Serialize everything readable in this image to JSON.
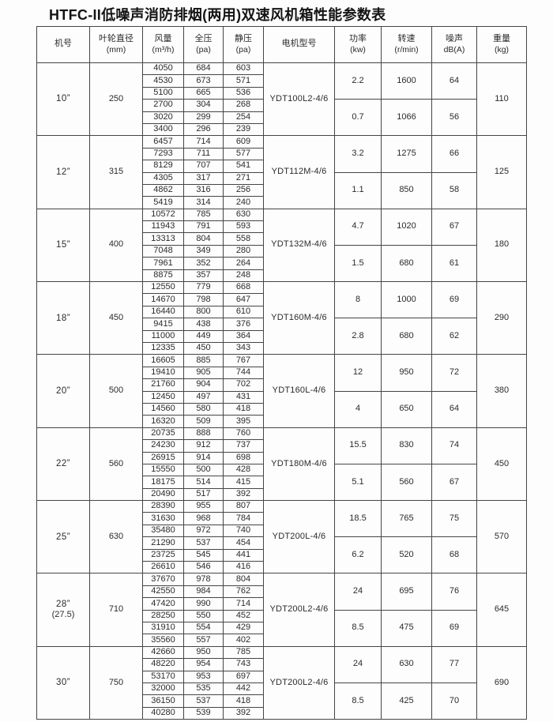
{
  "title": "HTFC-II低噪声消防排烟(两用)双速风机箱性能参数表",
  "table": {
    "headers": [
      {
        "label": "机号",
        "unit": ""
      },
      {
        "label": "叶轮直径",
        "unit": "(mm)"
      },
      {
        "label": "风量",
        "unit": "(m³/h)"
      },
      {
        "label": "全压",
        "unit": "(pa)"
      },
      {
        "label": "静压",
        "unit": "(pa)"
      },
      {
        "label": "电机型号",
        "unit": ""
      },
      {
        "label": "功率",
        "unit": "(kw)"
      },
      {
        "label": "转速",
        "unit": "(r/min)"
      },
      {
        "label": "噪声",
        "unit": "dB(A)"
      },
      {
        "label": "重量",
        "unit": "(kg)"
      }
    ],
    "groups": [
      {
        "size": "10”",
        "size_note": "",
        "diameter": "250",
        "motor": "YDT100L2-4/6",
        "weight": "110",
        "rows": [
          [
            4050,
            684,
            603
          ],
          [
            4530,
            673,
            571
          ],
          [
            5100,
            665,
            536
          ],
          [
            2700,
            304,
            268
          ],
          [
            3020,
            299,
            254
          ],
          [
            3400,
            296,
            239
          ]
        ],
        "speeds": [
          {
            "power": "2.2",
            "rpm": "1600",
            "noise": "64"
          },
          {
            "power": "0.7",
            "rpm": "1066",
            "noise": "56"
          }
        ]
      },
      {
        "size": "12”",
        "size_note": "",
        "diameter": "315",
        "motor": "YDT112M-4/6",
        "weight": "125",
        "rows": [
          [
            6457,
            714,
            609
          ],
          [
            7293,
            711,
            577
          ],
          [
            8129,
            707,
            541
          ],
          [
            4305,
            317,
            271
          ],
          [
            4862,
            316,
            256
          ],
          [
            5419,
            314,
            240
          ]
        ],
        "speeds": [
          {
            "power": "3.2",
            "rpm": "1275",
            "noise": "66"
          },
          {
            "power": "1.1",
            "rpm": "850",
            "noise": "58"
          }
        ]
      },
      {
        "size": "15”",
        "size_note": "",
        "diameter": "400",
        "motor": "YDT132M-4/6",
        "weight": "180",
        "rows": [
          [
            10572,
            785,
            630
          ],
          [
            11943,
            791,
            593
          ],
          [
            13313,
            804,
            558
          ],
          [
            7048,
            349,
            280
          ],
          [
            7961,
            352,
            264
          ],
          [
            8875,
            357,
            248
          ]
        ],
        "speeds": [
          {
            "power": "4.7",
            "rpm": "1020",
            "noise": "67"
          },
          {
            "power": "1.5",
            "rpm": "680",
            "noise": "61"
          }
        ]
      },
      {
        "size": "18”",
        "size_note": "",
        "diameter": "450",
        "motor": "YDT160M-4/6",
        "weight": "290",
        "rows": [
          [
            12550,
            779,
            668
          ],
          [
            14670,
            798,
            647
          ],
          [
            16440,
            800,
            610
          ],
          [
            9415,
            438,
            376
          ],
          [
            11000,
            449,
            364
          ],
          [
            12335,
            450,
            343
          ]
        ],
        "speeds": [
          {
            "power": "8",
            "rpm": "1000",
            "noise": "69"
          },
          {
            "power": "2.8",
            "rpm": "680",
            "noise": "62"
          }
        ]
      },
      {
        "size": "20”",
        "size_note": "",
        "diameter": "500",
        "motor": "YDT160L-4/6",
        "weight": "380",
        "rows": [
          [
            16605,
            885,
            767
          ],
          [
            19410,
            905,
            744
          ],
          [
            21760,
            904,
            702
          ],
          [
            12450,
            497,
            431
          ],
          [
            14560,
            580,
            418
          ],
          [
            16320,
            509,
            395
          ]
        ],
        "speeds": [
          {
            "power": "12",
            "rpm": "950",
            "noise": "72"
          },
          {
            "power": "4",
            "rpm": "650",
            "noise": "64"
          }
        ]
      },
      {
        "size": "22”",
        "size_note": "",
        "diameter": "560",
        "motor": "YDT180M-4/6",
        "weight": "450",
        "rows": [
          [
            20735,
            888,
            760
          ],
          [
            24230,
            912,
            737
          ],
          [
            26915,
            914,
            698
          ],
          [
            15550,
            500,
            428
          ],
          [
            18175,
            514,
            415
          ],
          [
            20490,
            517,
            392
          ]
        ],
        "speeds": [
          {
            "power": "15.5",
            "rpm": "830",
            "noise": "74"
          },
          {
            "power": "5.1",
            "rpm": "560",
            "noise": "67"
          }
        ]
      },
      {
        "size": "25”",
        "size_note": "",
        "diameter": "630",
        "motor": "YDT200L-4/6",
        "weight": "570",
        "rows": [
          [
            28390,
            955,
            807
          ],
          [
            31630,
            968,
            784
          ],
          [
            35480,
            972,
            740
          ],
          [
            21290,
            537,
            454
          ],
          [
            23725,
            545,
            441
          ],
          [
            26610,
            546,
            416
          ]
        ],
        "speeds": [
          {
            "power": "18.5",
            "rpm": "765",
            "noise": "75"
          },
          {
            "power": "6.2",
            "rpm": "520",
            "noise": "68"
          }
        ]
      },
      {
        "size": "28”",
        "size_note": "(27.5)",
        "diameter": "710",
        "motor": "YDT200L2-4/6",
        "weight": "645",
        "rows": [
          [
            37670,
            978,
            804
          ],
          [
            42550,
            984,
            762
          ],
          [
            47420,
            990,
            714
          ],
          [
            28250,
            550,
            452
          ],
          [
            31910,
            554,
            429
          ],
          [
            35560,
            557,
            402
          ]
        ],
        "speeds": [
          {
            "power": "24",
            "rpm": "695",
            "noise": "76"
          },
          {
            "power": "8.5",
            "rpm": "475",
            "noise": "69"
          }
        ]
      },
      {
        "size": "30”",
        "size_note": "",
        "diameter": "750",
        "motor": "YDT200L2-4/6",
        "weight": "690",
        "rows": [
          [
            42660,
            950,
            785
          ],
          [
            48220,
            954,
            743
          ],
          [
            53170,
            953,
            697
          ],
          [
            32000,
            535,
            442
          ],
          [
            36150,
            537,
            418
          ],
          [
            40280,
            539,
            392
          ]
        ],
        "speeds": [
          {
            "power": "24",
            "rpm": "630",
            "noise": "77"
          },
          {
            "power": "8.5",
            "rpm": "425",
            "noise": "70"
          }
        ]
      }
    ]
  }
}
